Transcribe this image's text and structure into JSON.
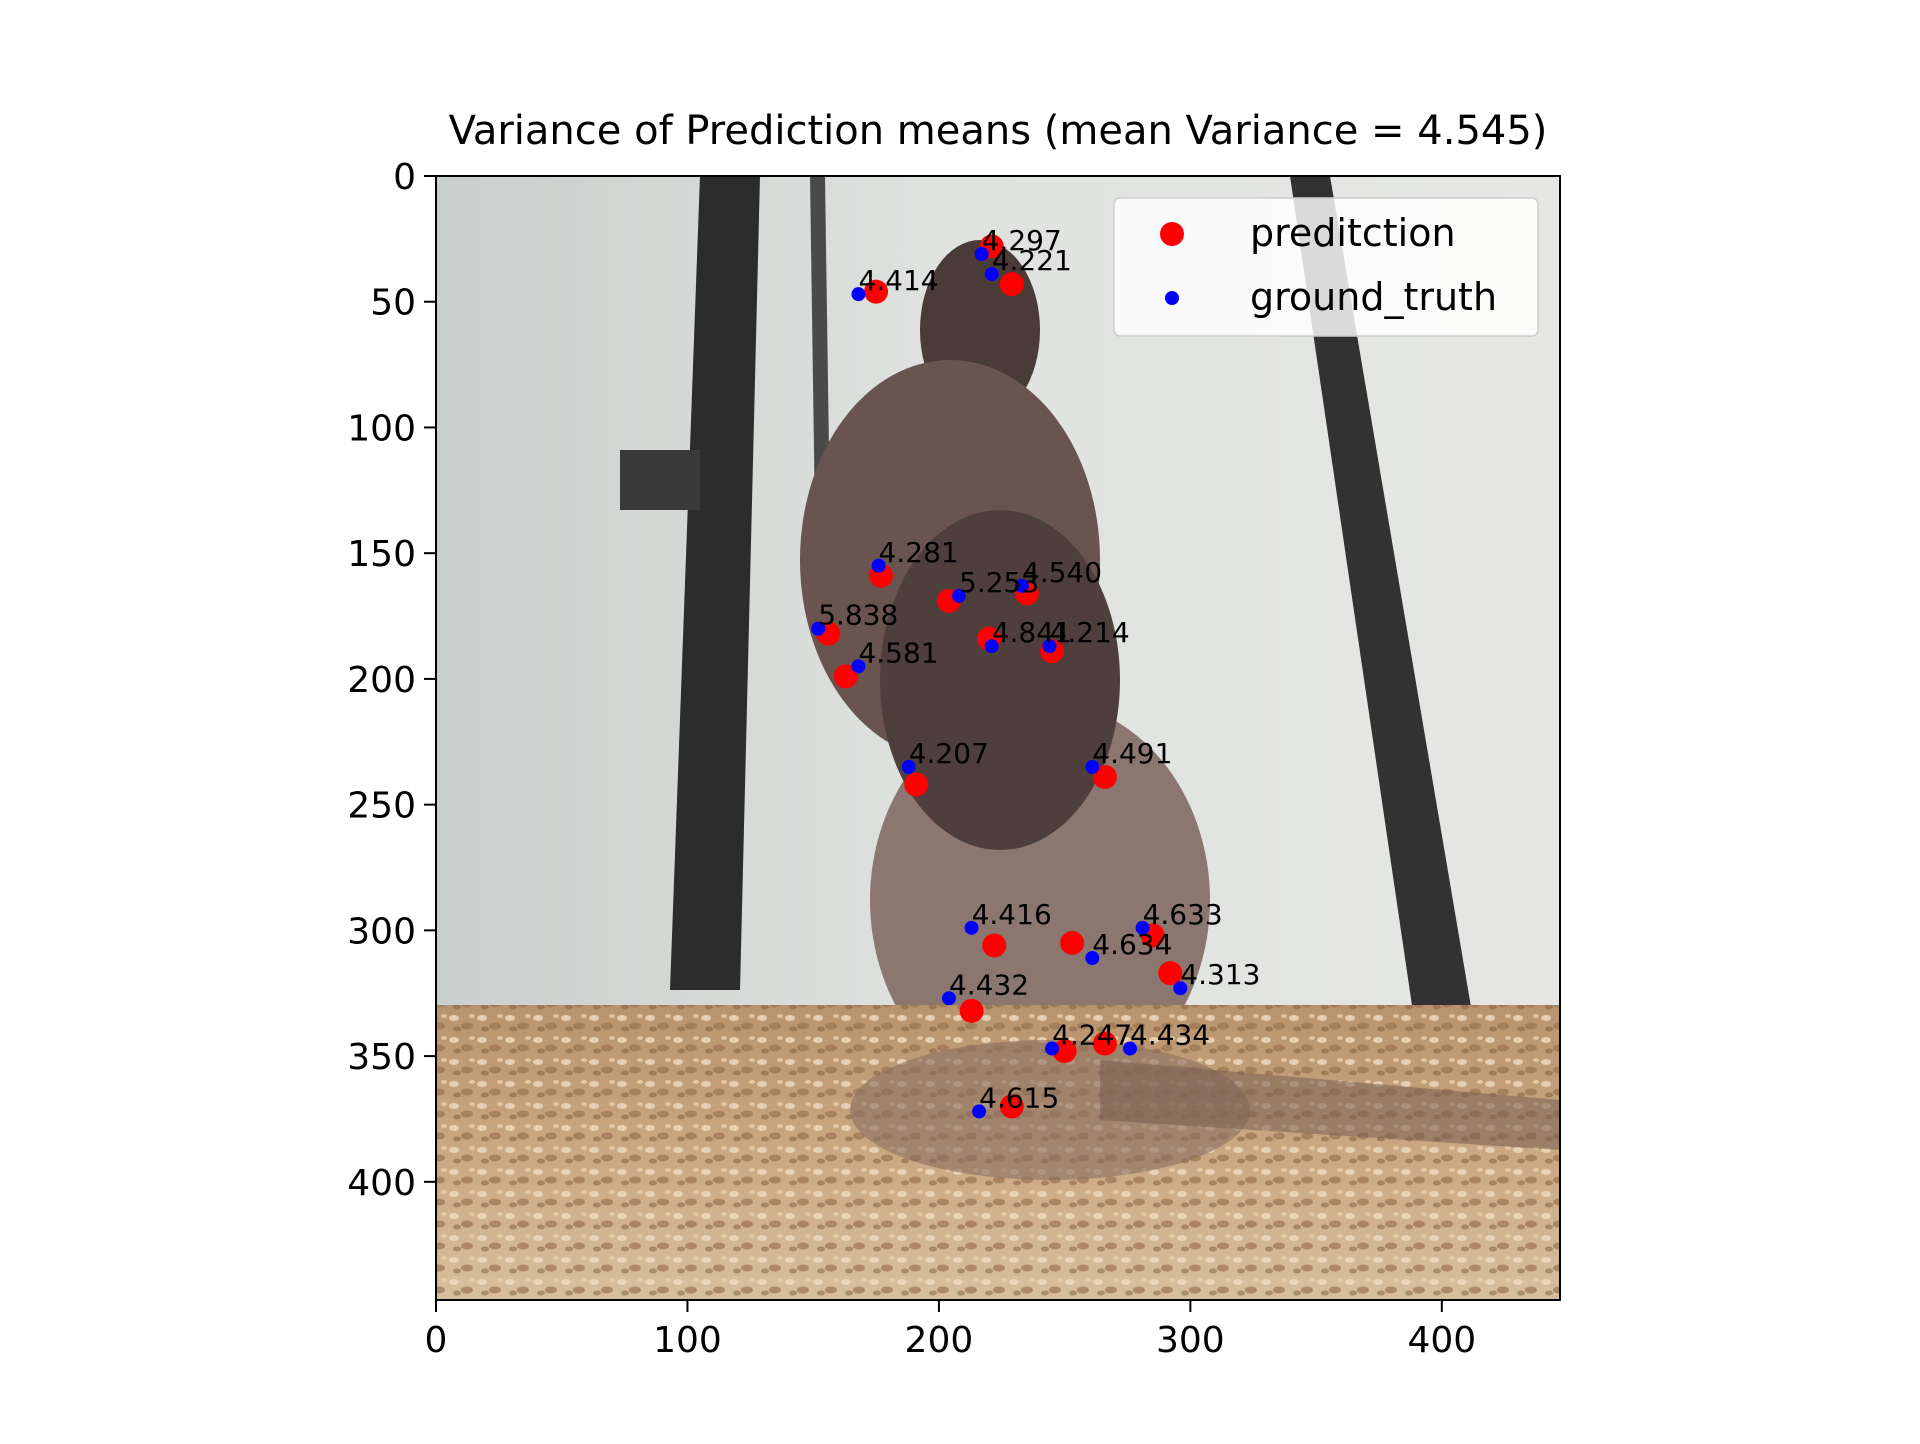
{
  "chart_data": {
    "type": "scatter",
    "title": "Variance of Prediction means (mean Variance = 4.545)",
    "xlabel": "",
    "ylabel": "",
    "xlim": [
      0,
      447
    ],
    "ylim": [
      447,
      0
    ],
    "y_inverted": true,
    "background": "photo of a rat standing on bedding",
    "grid": false,
    "legend_position": "top-right",
    "x_ticks": [
      0,
      100,
      200,
      300,
      400
    ],
    "y_ticks": [
      0,
      50,
      100,
      150,
      200,
      250,
      300,
      350,
      400
    ],
    "series": [
      {
        "name": "preditction",
        "color": "#ff0000",
        "points": [
          {
            "x": 221,
            "y": 28
          },
          {
            "x": 229,
            "y": 43
          },
          {
            "x": 175,
            "y": 46
          },
          {
            "x": 177,
            "y": 159
          },
          {
            "x": 204,
            "y": 169
          },
          {
            "x": 235,
            "y": 166
          },
          {
            "x": 156,
            "y": 182
          },
          {
            "x": 220,
            "y": 184
          },
          {
            "x": 245,
            "y": 189
          },
          {
            "x": 163,
            "y": 199
          },
          {
            "x": 191,
            "y": 242
          },
          {
            "x": 266,
            "y": 239
          },
          {
            "x": 222,
            "y": 306
          },
          {
            "x": 253,
            "y": 305
          },
          {
            "x": 285,
            "y": 302
          },
          {
            "x": 292,
            "y": 317
          },
          {
            "x": 213,
            "y": 332
          },
          {
            "x": 266,
            "y": 345
          },
          {
            "x": 250,
            "y": 348
          },
          {
            "x": 229,
            "y": 370
          }
        ]
      },
      {
        "name": "ground_truth",
        "color": "#0000ff",
        "points": [
          {
            "x": 217,
            "y": 31
          },
          {
            "x": 221,
            "y": 39
          },
          {
            "x": 168,
            "y": 47
          },
          {
            "x": 176,
            "y": 155
          },
          {
            "x": 208,
            "y": 167
          },
          {
            "x": 233,
            "y": 163
          },
          {
            "x": 152,
            "y": 180
          },
          {
            "x": 221,
            "y": 187
          },
          {
            "x": 244,
            "y": 187
          },
          {
            "x": 168,
            "y": 195
          },
          {
            "x": 188,
            "y": 235
          },
          {
            "x": 261,
            "y": 235
          },
          {
            "x": 213,
            "y": 299
          },
          {
            "x": 261,
            "y": 311
          },
          {
            "x": 281,
            "y": 299
          },
          {
            "x": 296,
            "y": 323
          },
          {
            "x": 204,
            "y": 327
          },
          {
            "x": 276,
            "y": 347
          },
          {
            "x": 245,
            "y": 347
          },
          {
            "x": 216,
            "y": 372
          }
        ]
      }
    ],
    "annotations": [
      {
        "text": "4.297",
        "x": 217,
        "y": 31
      },
      {
        "text": "4.221",
        "x": 221,
        "y": 39
      },
      {
        "text": "4.414",
        "x": 168,
        "y": 47
      },
      {
        "text": "4.281",
        "x": 176,
        "y": 155
      },
      {
        "text": "5.253",
        "x": 208,
        "y": 167
      },
      {
        "text": "4.540",
        "x": 233,
        "y": 163
      },
      {
        "text": "5.838",
        "x": 152,
        "y": 180
      },
      {
        "text": "4.841",
        "x": 221,
        "y": 187
      },
      {
        "text": "4.214",
        "x": 244,
        "y": 187
      },
      {
        "text": "4.581",
        "x": 168,
        "y": 195
      },
      {
        "text": "4.207",
        "x": 188,
        "y": 235
      },
      {
        "text": "4.491",
        "x": 261,
        "y": 235
      },
      {
        "text": "4.416",
        "x": 213,
        "y": 299
      },
      {
        "text": "4.634",
        "x": 261,
        "y": 311
      },
      {
        "text": "4.633",
        "x": 281,
        "y": 299
      },
      {
        "text": "4.313",
        "x": 296,
        "y": 323
      },
      {
        "text": "4.432",
        "x": 204,
        "y": 327
      },
      {
        "text": "4.434",
        "x": 276,
        "y": 347
      },
      {
        "text": "4.247",
        "x": 245,
        "y": 347
      },
      {
        "text": "4.615",
        "x": 216,
        "y": 372
      }
    ]
  }
}
